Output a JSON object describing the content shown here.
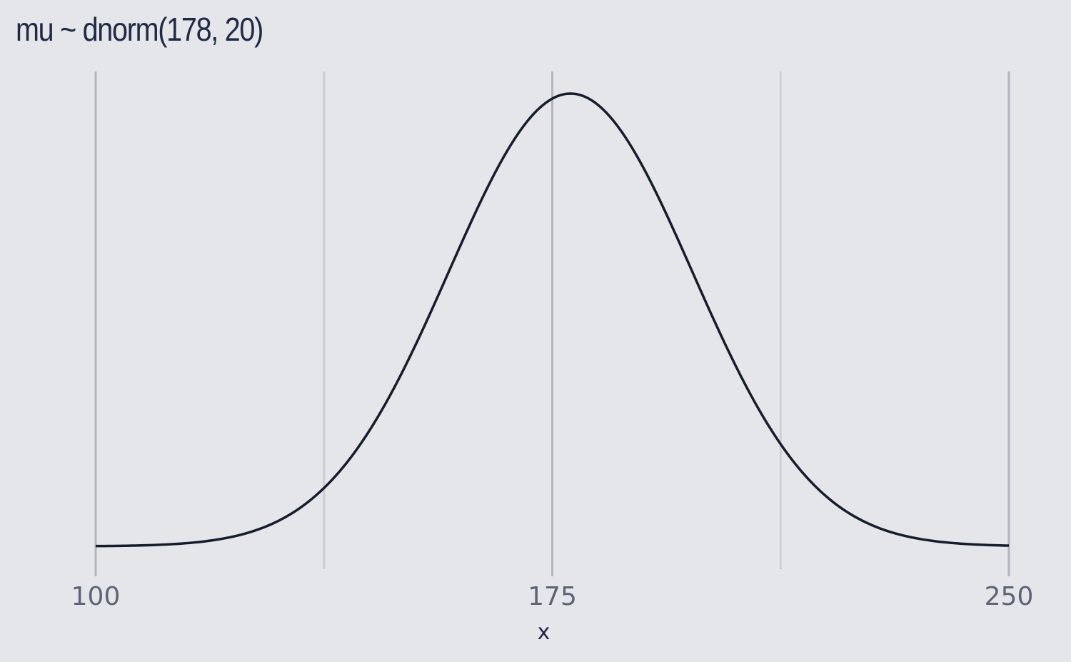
{
  "chart_data": {
    "type": "line",
    "title": "mu ~ dnorm(178, 20)",
    "xlabel": "x",
    "ylabel": "",
    "xlim": [
      100,
      250
    ],
    "x_ticks": [
      100,
      175,
      250
    ],
    "x_minor_gridlines": [
      137.5,
      212.5
    ],
    "y_axis_shown": false,
    "grid": "vertical-only",
    "series": [
      {
        "distribution": "normal",
        "mean": 178,
        "sd": 20,
        "color": "#151c2c"
      }
    ]
  },
  "colors": {
    "background": "#e5e6ea",
    "major_grid": "#b3b5bd",
    "minor_grid": "#cdced3",
    "title": "#1f2a44",
    "tick_label": "#5d6475"
  }
}
